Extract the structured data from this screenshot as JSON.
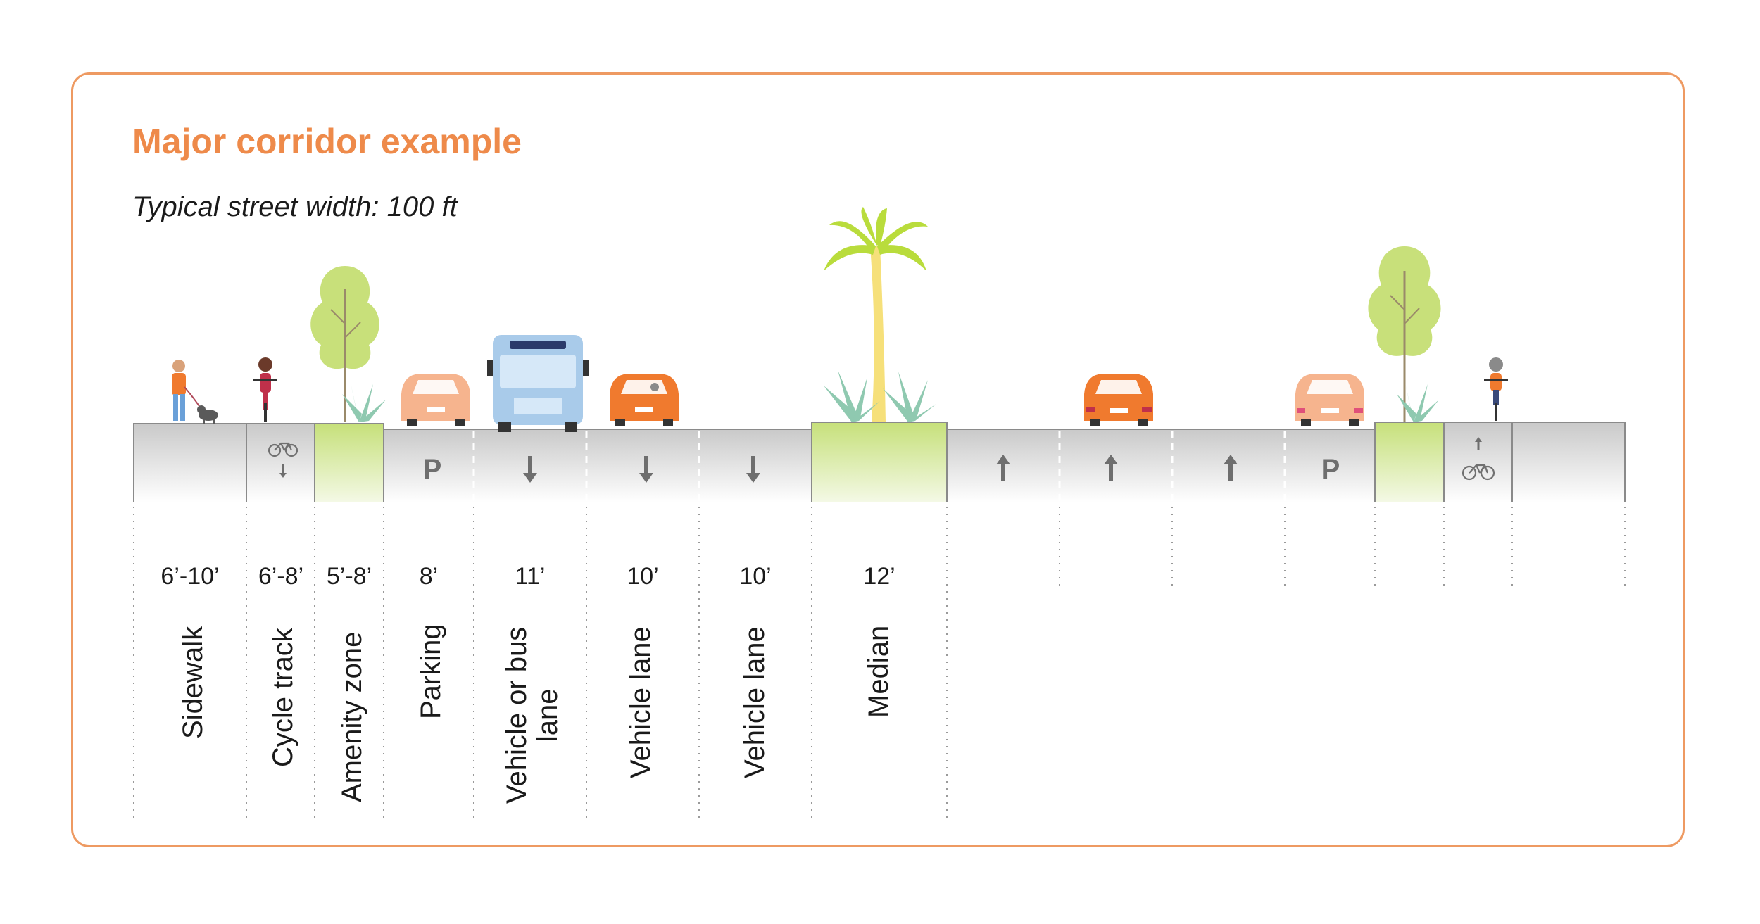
{
  "title": "Major corridor example",
  "subtitle": "Typical street width: 100 ft",
  "segments": [
    {
      "id": "sidewalk",
      "dimension": "6’-10’",
      "label": "Sidewalk"
    },
    {
      "id": "cycle-track",
      "dimension": "6’-8’",
      "label": "Cycle track"
    },
    {
      "id": "amenity-zone",
      "dimension": "5’-8’",
      "label": "Amenity zone"
    },
    {
      "id": "parking",
      "dimension": "8’",
      "label": "Parking",
      "marking": "P"
    },
    {
      "id": "vehicle-or-bus-lane",
      "dimension": "11’",
      "label_line1": "Vehicle or bus",
      "label_line2": "lane"
    },
    {
      "id": "vehicle-lane-1",
      "dimension": "10’",
      "label": "Vehicle lane"
    },
    {
      "id": "vehicle-lane-2",
      "dimension": "10’",
      "label": "Vehicle lane"
    },
    {
      "id": "median",
      "dimension": "12’",
      "label": "Median"
    }
  ],
  "markings": {
    "parking_left": "P",
    "parking_right": "P"
  },
  "colors": {
    "frame": "#ee9a62",
    "title": "#ee8a4a",
    "pavement": "#c8c8c8",
    "green_zone": "#c6e07a",
    "car_orange": "#f07a2e",
    "car_peach": "#f6b48e",
    "bus_blue": "#a9cbea",
    "tree": "#c8e07a",
    "palm": "#b9dc3c"
  }
}
